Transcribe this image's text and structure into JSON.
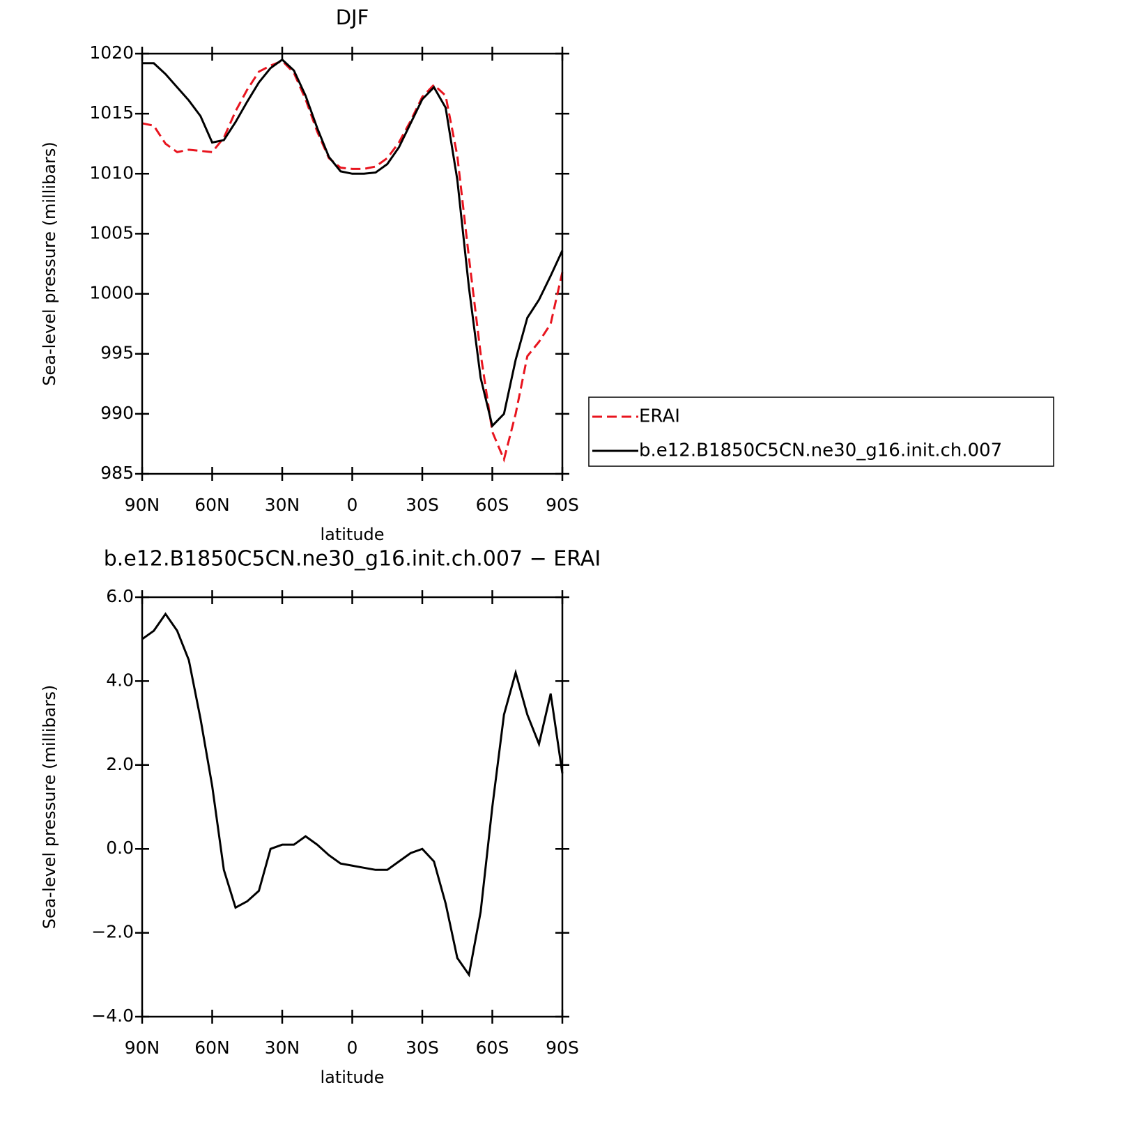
{
  "chart_data": [
    {
      "type": "line",
      "title": "DJF",
      "xlabel": "latitude",
      "ylabel": "Sea-level pressure (millibars)",
      "x": [
        90,
        85,
        80,
        75,
        70,
        65,
        60,
        55,
        50,
        45,
        40,
        35,
        30,
        25,
        20,
        15,
        10,
        5,
        0,
        -5,
        -10,
        -15,
        -20,
        -25,
        -30,
        -35,
        -40,
        -45,
        -50,
        -55,
        -60,
        -65,
        -70,
        -75,
        -80,
        -85,
        -90
      ],
      "series": [
        {
          "name": "ERAI",
          "color": "#e8141e",
          "linestyle": "dashed",
          "values": [
            1014.2,
            1014.0,
            1012.5,
            1011.8,
            1012.0,
            1011.9,
            1011.8,
            1013.0,
            1015.2,
            1017.0,
            1018.5,
            1019.0,
            1019.4,
            1018.4,
            1016.2,
            1013.5,
            1011.3,
            1010.5,
            1010.4,
            1010.4,
            1010.6,
            1011.3,
            1012.6,
            1014.4,
            1016.4,
            1017.4,
            1016.5,
            1011.5,
            1003,
            995,
            988.5,
            986.2,
            990,
            994.8,
            996,
            997.5,
            1001.8
          ]
        },
        {
          "name": "b.e12.B1850C5CN.ne30_g16.init.ch.007",
          "color": "#000000",
          "linestyle": "solid",
          "values": [
            1019.2,
            1019.2,
            1018.3,
            1017.2,
            1016.1,
            1014.8,
            1012.6,
            1012.8,
            1014.3,
            1016.0,
            1017.6,
            1018.8,
            1019.5,
            1018.6,
            1016.5,
            1013.8,
            1011.4,
            1010.2,
            1010.0,
            1010.0,
            1010.1,
            1010.8,
            1012.2,
            1014.2,
            1016.2,
            1017.2,
            1015.5,
            1009.5,
            1000.5,
            993,
            989,
            990,
            994.5,
            998,
            999.5,
            1001.5,
            1003.6
          ]
        }
      ],
      "xlim": [
        90,
        -90
      ],
      "xticks": [
        {
          "value": 90,
          "label": "90N"
        },
        {
          "value": 60,
          "label": "60N"
        },
        {
          "value": 30,
          "label": "30N"
        },
        0,
        {
          "value": -30,
          "label": "30S"
        },
        {
          "value": -60,
          "label": "60S"
        },
        {
          "value": -90,
          "label": "90S"
        }
      ],
      "ylim": [
        985,
        1020
      ],
      "yticks": [
        985,
        990,
        995,
        1000,
        1005,
        1010,
        1015,
        1020
      ],
      "legend": "right"
    },
    {
      "type": "line",
      "title": "b.e12.B1850C5CN.ne30_g16.init.ch.007 − ERAI",
      "xlabel": "latitude",
      "ylabel": "Sea-level pressure (millibars)",
      "x": [
        90,
        85,
        80,
        75,
        70,
        65,
        60,
        55,
        50,
        45,
        40,
        35,
        30,
        25,
        20,
        15,
        10,
        5,
        0,
        -5,
        -10,
        -15,
        -20,
        -25,
        -30,
        -35,
        -40,
        -45,
        -50,
        -55,
        -60,
        -65,
        -70,
        -75,
        -80,
        -85,
        -90
      ],
      "series": [
        {
          "color": "#000000",
          "linestyle": "solid",
          "values": [
            5.0,
            5.2,
            5.6,
            5.2,
            4.5,
            3.1,
            1.5,
            -0.5,
            -1.4,
            -1.25,
            -1.0,
            0.0,
            0.1,
            0.1,
            0.3,
            0.1,
            -0.15,
            -0.35,
            -0.4,
            -0.45,
            -0.5,
            -0.5,
            -0.3,
            -0.1,
            0.0,
            -0.3,
            -1.3,
            -2.6,
            -3.0,
            -1.5,
            1.0,
            3.2,
            4.2,
            3.2,
            2.5,
            3.7,
            1.8
          ]
        }
      ],
      "xlim": [
        90,
        -90
      ],
      "xticks": [
        {
          "value": 90,
          "label": "90N"
        },
        {
          "value": 60,
          "label": "60N"
        },
        {
          "value": 30,
          "label": "30N"
        },
        0,
        {
          "value": -30,
          "label": "30S"
        },
        {
          "value": -60,
          "label": "60S"
        },
        {
          "value": -90,
          "label": "90S"
        }
      ],
      "ylim": [
        -4,
        6
      ],
      "yticks": [
        {
          "value": -4,
          "label": "−4.0"
        },
        {
          "value": -2,
          "label": "−2.0"
        },
        {
          "value": 0,
          "label": "0.0"
        },
        {
          "value": 2,
          "label": "2.0"
        },
        {
          "value": 4,
          "label": "4.0"
        },
        {
          "value": 6,
          "label": "6.0"
        }
      ]
    }
  ]
}
